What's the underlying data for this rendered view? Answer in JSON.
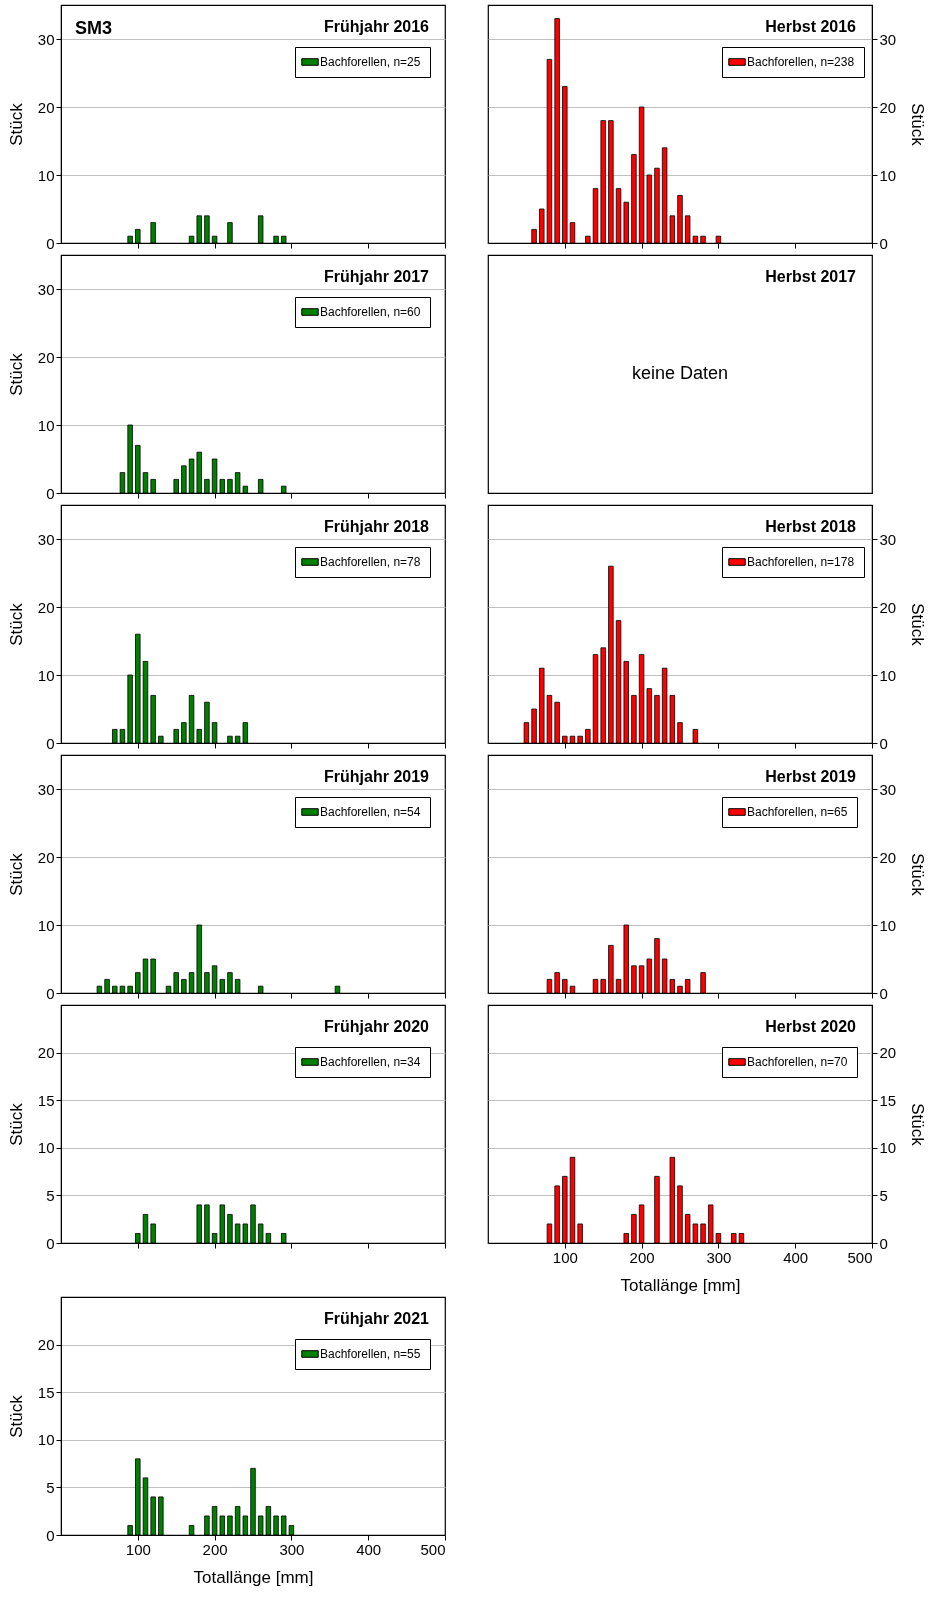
{
  "chart_data": [
    {
      "type": "bar",
      "title": "Frühjahr 2016",
      "annotations": [
        "SM3"
      ],
      "ylabel": "Stück",
      "xlim": [
        0,
        500
      ],
      "xticks": [
        100,
        200,
        300,
        400,
        500
      ],
      "ylim": [
        0,
        35
      ],
      "yticks": [
        0,
        10,
        20,
        30
      ],
      "grid": "y",
      "legend": "top right",
      "tick_labels": "y",
      "series": [
        {
          "name": "Bachforellen, n=25",
          "color": "#008000",
          "x": [
            90,
            100,
            120,
            170,
            180,
            190,
            200,
            220,
            260,
            280,
            290
          ],
          "values": [
            1,
            2,
            3,
            1,
            4,
            4,
            1,
            3,
            4,
            1,
            1
          ]
        }
      ]
    },
    {
      "type": "bar",
      "title": "Herbst 2016",
      "y2label": "Stück",
      "xlim": [
        0,
        500
      ],
      "xticks": [
        100,
        200,
        300,
        400,
        500
      ],
      "y2lim": [
        0,
        35
      ],
      "y2ticks": [
        0,
        10,
        20,
        30
      ],
      "grid": "y",
      "legend": "top right",
      "tick_labels": "y",
      "series": [
        {
          "name": "Bachforellen, n=238",
          "color": "#ff0000",
          "axis": "y2",
          "x": [
            60,
            70,
            80,
            90,
            100,
            110,
            130,
            140,
            150,
            160,
            170,
            180,
            190,
            200,
            210,
            220,
            230,
            240,
            250,
            260,
            270,
            280,
            300
          ],
          "values": [
            2,
            5,
            27,
            33,
            23,
            3,
            1,
            8,
            18,
            18,
            8,
            6,
            13,
            20,
            10,
            11,
            14,
            4,
            7,
            4,
            1,
            1,
            1
          ]
        }
      ]
    },
    {
      "type": "bar",
      "title": "Frühjahr 2017",
      "ylabel": "Stück",
      "xlim": [
        0,
        500
      ],
      "xticks": [
        100,
        200,
        300,
        400,
        500
      ],
      "ylim": [
        0,
        35
      ],
      "yticks": [
        0,
        10,
        20,
        30
      ],
      "grid": "y",
      "legend": "top right",
      "tick_labels": "y",
      "series": [
        {
          "name": "Bachforellen, n=60",
          "color": "#008000",
          "x": [
            80,
            90,
            100,
            110,
            120,
            150,
            160,
            170,
            180,
            190,
            200,
            210,
            220,
            230,
            240,
            260,
            290
          ],
          "values": [
            3,
            10,
            7,
            3,
            2,
            2,
            4,
            5,
            6,
            2,
            5,
            2,
            2,
            3,
            1,
            2,
            1
          ]
        }
      ]
    },
    {
      "type": "other",
      "title": "Herbst 2017",
      "annotations": [
        "keine Daten"
      ]
    },
    {
      "type": "bar",
      "title": "Frühjahr 2018",
      "ylabel": "Stück",
      "xlim": [
        0,
        500
      ],
      "xticks": [
        100,
        200,
        300,
        400,
        500
      ],
      "ylim": [
        0,
        35
      ],
      "yticks": [
        0,
        10,
        20,
        30
      ],
      "grid": "y",
      "legend": "top right",
      "tick_labels": "y",
      "series": [
        {
          "name": "Bachforellen, n=78",
          "color": "#008000",
          "x": [
            70,
            80,
            90,
            100,
            110,
            120,
            130,
            150,
            160,
            170,
            180,
            190,
            200,
            220,
            230,
            240
          ],
          "values": [
            2,
            2,
            10,
            16,
            12,
            7,
            1,
            2,
            3,
            7,
            2,
            6,
            3,
            1,
            1,
            3
          ]
        }
      ]
    },
    {
      "type": "bar",
      "title": "Herbst 2018",
      "y2label": "Stück",
      "xlim": [
        0,
        500
      ],
      "xticks": [
        100,
        200,
        300,
        400,
        500
      ],
      "y2lim": [
        0,
        35
      ],
      "y2ticks": [
        0,
        10,
        20,
        30
      ],
      "grid": "y",
      "legend": "top right",
      "tick_labels": "y",
      "series": [
        {
          "name": "Bachforellen, n=178",
          "color": "#ff0000",
          "axis": "y2",
          "x": [
            50,
            60,
            70,
            80,
            90,
            100,
            110,
            120,
            130,
            140,
            150,
            160,
            170,
            180,
            190,
            200,
            210,
            220,
            230,
            240,
            250,
            270
          ],
          "values": [
            3,
            5,
            11,
            7,
            6,
            1,
            1,
            1,
            2,
            13,
            14,
            26,
            18,
            12,
            7,
            13,
            8,
            7,
            11,
            7,
            3,
            2
          ]
        }
      ]
    },
    {
      "type": "bar",
      "title": "Frühjahr 2019",
      "ylabel": "Stück",
      "xlim": [
        0,
        500
      ],
      "xticks": [
        100,
        200,
        300,
        400,
        500
      ],
      "ylim": [
        0,
        35
      ],
      "yticks": [
        0,
        10,
        20,
        30
      ],
      "grid": "y",
      "legend": "top right",
      "tick_labels": "y",
      "series": [
        {
          "name": "Bachforellen, n=54",
          "color": "#008000",
          "x": [
            50,
            60,
            70,
            80,
            90,
            100,
            110,
            120,
            140,
            150,
            160,
            170,
            180,
            190,
            200,
            210,
            220,
            230,
            260,
            360
          ],
          "values": [
            1,
            2,
            1,
            1,
            1,
            3,
            5,
            5,
            1,
            3,
            2,
            3,
            10,
            3,
            4,
            2,
            3,
            2,
            1,
            1
          ]
        }
      ]
    },
    {
      "type": "bar",
      "title": "Herbst 2019",
      "y2label": "Stück",
      "xlim": [
        0,
        500
      ],
      "xticks": [
        100,
        200,
        300,
        400,
        500
      ],
      "y2lim": [
        0,
        35
      ],
      "y2ticks": [
        0,
        10,
        20,
        30
      ],
      "grid": "y",
      "legend": "top right",
      "tick_labels": "y",
      "series": [
        {
          "name": "Bachforellen, n=65",
          "color": "#ff0000",
          "axis": "y2",
          "x": [
            80,
            90,
            100,
            110,
            140,
            150,
            160,
            170,
            180,
            190,
            200,
            210,
            220,
            230,
            240,
            250,
            260,
            280
          ],
          "values": [
            2,
            3,
            2,
            1,
            2,
            2,
            7,
            2,
            10,
            4,
            4,
            5,
            8,
            5,
            2,
            1,
            2,
            3
          ]
        }
      ]
    },
    {
      "type": "bar",
      "title": "Frühjahr 2020",
      "ylabel": "Stück",
      "xlim": [
        0,
        500
      ],
      "xticks": [
        100,
        200,
        300,
        400,
        500
      ],
      "ylim": [
        0,
        25
      ],
      "yticks": [
        0,
        5,
        10,
        15,
        20
      ],
      "grid": "y",
      "legend": "top right",
      "tick_labels": "y",
      "series": [
        {
          "name": "Bachforellen, n=34",
          "color": "#008000",
          "x": [
            100,
            110,
            120,
            180,
            190,
            200,
            210,
            220,
            230,
            240,
            250,
            260,
            270,
            290
          ],
          "values": [
            1,
            3,
            2,
            4,
            4,
            1,
            4,
            3,
            2,
            2,
            4,
            2,
            1,
            1
          ]
        }
      ]
    },
    {
      "type": "bar",
      "title": "Herbst 2020",
      "xlabel": "Totallänge [mm]",
      "y2label": "Stück",
      "xlim": [
        0,
        500
      ],
      "xticks": [
        100,
        200,
        300,
        400,
        500
      ],
      "y2lim": [
        0,
        25
      ],
      "y2ticks": [
        0,
        5,
        10,
        15,
        20
      ],
      "grid": "y",
      "legend": "top right",
      "series": [
        {
          "name": "Bachforellen, n=70",
          "color": "#ff0000",
          "axis": "y2",
          "x": [
            80,
            90,
            100,
            110,
            120,
            180,
            190,
            200,
            220,
            240,
            250,
            260,
            270,
            280,
            290,
            300,
            320,
            330
          ],
          "values": [
            2,
            6,
            7,
            9,
            2,
            1,
            3,
            4,
            7,
            9,
            6,
            3,
            2,
            2,
            4,
            1,
            1,
            1
          ]
        }
      ]
    },
    {
      "type": "bar",
      "title": "Frühjahr 2021",
      "xlabel": "Totallänge [mm]",
      "ylabel": "Stück",
      "xlim": [
        0,
        500
      ],
      "xticks": [
        100,
        200,
        300,
        400,
        500
      ],
      "ylim": [
        0,
        25
      ],
      "yticks": [
        0,
        5,
        10,
        15,
        20
      ],
      "grid": "y",
      "legend": "top right",
      "series": [
        {
          "name": "Bachforellen, n=55",
          "color": "#008000",
          "x": [
            90,
            100,
            110,
            120,
            130,
            170,
            190,
            200,
            210,
            220,
            230,
            240,
            250,
            260,
            270,
            280,
            290,
            300
          ],
          "values": [
            1,
            8,
            6,
            4,
            4,
            1,
            2,
            3,
            2,
            2,
            3,
            2,
            7,
            2,
            3,
            2,
            2,
            1
          ]
        }
      ]
    }
  ]
}
